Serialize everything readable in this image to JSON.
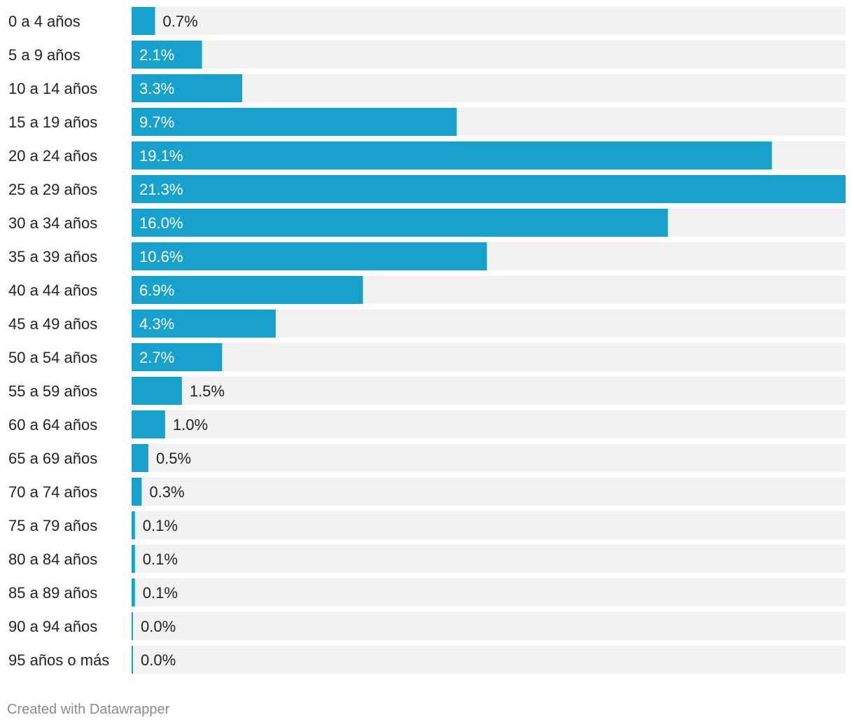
{
  "chart_data": {
    "type": "bar",
    "orientation": "horizontal",
    "categories": [
      "0 a 4 años",
      "5 a 9 años",
      "10 a 14 años",
      "15 a 19 años",
      "20 a 24 años",
      "25 a 29 años",
      "30 a 34 años",
      "35 a 39 años",
      "40 a 44 años",
      "45 a 49 años",
      "50 a 54 años",
      "55 a 59 años",
      "60 a 64 años",
      "65 a 69 años",
      "70 a 74 años",
      "75 a 79 años",
      "80 a 84 años",
      "85 a 89 años",
      "90 a 94 años",
      "95 años o más"
    ],
    "values": [
      0.7,
      2.1,
      3.3,
      9.7,
      19.1,
      21.3,
      16.0,
      10.6,
      6.9,
      4.3,
      2.7,
      1.5,
      1.0,
      0.5,
      0.3,
      0.1,
      0.1,
      0.1,
      0.0,
      0.0
    ],
    "value_labels": [
      "0.7%",
      "2.1%",
      "3.3%",
      "9.7%",
      "19.1%",
      "21.3%",
      "16.0%",
      "10.6%",
      "6.9%",
      "4.3%",
      "2.7%",
      "1.5%",
      "1.0%",
      "0.5%",
      "0.3%",
      "0.1%",
      "0.1%",
      "0.1%",
      "0.0%",
      "0.0%"
    ],
    "title": "",
    "xlabel": "",
    "ylabel": "",
    "xlim": [
      0,
      21.3
    ],
    "grid": false,
    "legend": "none",
    "colors": {
      "bar": "#18a1cd",
      "track": "#f2f2f2",
      "label_inside": "#ffffff",
      "label_outside": "#222222"
    }
  },
  "footer": {
    "credit": "Created with Datawrapper"
  }
}
